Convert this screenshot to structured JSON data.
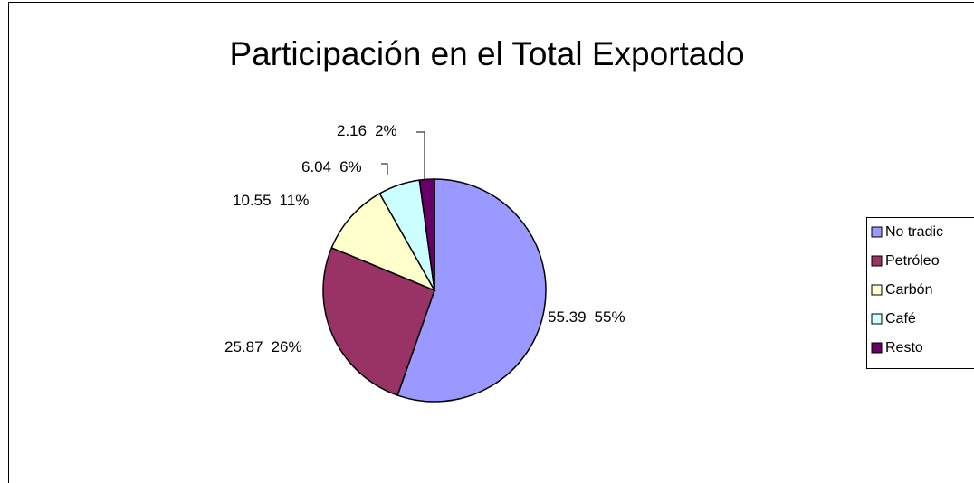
{
  "chart_data": {
    "type": "pie",
    "title": "Participación en el Total Exportado",
    "categories": [
      "No tradic",
      "Petróleo",
      "Carbón",
      "Café",
      "Resto"
    ],
    "values": [
      55.39,
      25.87,
      10.55,
      6.04,
      2.16
    ],
    "percent_labels": [
      "55%",
      "26%",
      "11%",
      "6%",
      "2%"
    ],
    "colors": [
      "#9999ff",
      "#993366",
      "#ffffcc",
      "#ccffff",
      "#660066"
    ],
    "legend": "right"
  }
}
